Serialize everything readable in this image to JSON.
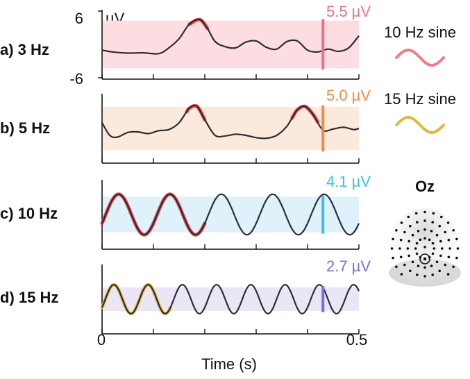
{
  "chart_data": {
    "type": "line",
    "xlabel": "Time (s)",
    "xlim": [
      0,
      0.5
    ],
    "x_ticks": [
      0,
      0.1,
      0.2,
      0.3,
      0.4,
      0.5
    ],
    "x_tick_labels": {
      "start": "0",
      "end": "0.5"
    },
    "y_range_uv": [
      -6,
      6
    ],
    "y_unit": "µV",
    "y_tick_labels": {
      "top": "6",
      "bottom": "-6"
    },
    "panels": [
      {
        "id": "a",
        "label": "a) 3 Hz",
        "stim_freq_hz": 3,
        "shade_color": "#fbdde2",
        "amplitude_label": "5.5 µV",
        "amplitude_uv": 5.5,
        "marker_color": "#ef6f86",
        "marker_time_s": 0.43,
        "fit_color": "#e8323a",
        "fit_segments": [
          [
            0.17,
            0.205
          ]
        ],
        "series": [
          [
            0.0,
            -1.0
          ],
          [
            0.02,
            -1.3
          ],
          [
            0.05,
            -1.5
          ],
          [
            0.08,
            -1.45
          ],
          [
            0.11,
            -1.6
          ],
          [
            0.13,
            -0.6
          ],
          [
            0.15,
            1.0
          ],
          [
            0.17,
            3.5
          ],
          [
            0.19,
            4.3
          ],
          [
            0.205,
            2.8
          ],
          [
            0.22,
            0.5
          ],
          [
            0.24,
            -0.4
          ],
          [
            0.26,
            -0.6
          ],
          [
            0.28,
            0.4
          ],
          [
            0.3,
            0.6
          ],
          [
            0.32,
            -0.5
          ],
          [
            0.34,
            -0.8
          ],
          [
            0.36,
            0.5
          ],
          [
            0.38,
            0.6
          ],
          [
            0.4,
            -1.0
          ],
          [
            0.42,
            -1.3
          ],
          [
            0.44,
            -0.8
          ],
          [
            0.46,
            -1.2
          ],
          [
            0.48,
            -0.6
          ],
          [
            0.5,
            1.5
          ]
        ]
      },
      {
        "id": "b",
        "label": "b) 5 Hz",
        "stim_freq_hz": 5,
        "shade_color": "#fbe9dc",
        "amplitude_label": "5.0 µV",
        "amplitude_uv": 5.0,
        "marker_color": "#ee8a48",
        "marker_time_s": 0.43,
        "fit_color": "#e8323a",
        "fit_segments": [
          [
            0.165,
            0.2
          ],
          [
            0.37,
            0.42
          ]
        ],
        "series": [
          [
            0.0,
            1.0
          ],
          [
            0.015,
            -1.2
          ],
          [
            0.03,
            -1.5
          ],
          [
            0.05,
            -0.7
          ],
          [
            0.07,
            -0.6
          ],
          [
            0.09,
            -0.9
          ],
          [
            0.11,
            -0.4
          ],
          [
            0.13,
            -0.2
          ],
          [
            0.15,
            1.0
          ],
          [
            0.17,
            3.5
          ],
          [
            0.185,
            3.8
          ],
          [
            0.2,
            1.5
          ],
          [
            0.22,
            -1.2
          ],
          [
            0.24,
            -1.3
          ],
          [
            0.26,
            -1.0
          ],
          [
            0.28,
            -1.2
          ],
          [
            0.3,
            -1.6
          ],
          [
            0.32,
            -1.7
          ],
          [
            0.34,
            -1.2
          ],
          [
            0.36,
            0.4
          ],
          [
            0.38,
            3.2
          ],
          [
            0.395,
            3.8
          ],
          [
            0.41,
            2.5
          ],
          [
            0.43,
            -0.3
          ],
          [
            0.45,
            -0.1
          ],
          [
            0.47,
            0.2
          ],
          [
            0.49,
            -0.2
          ],
          [
            0.5,
            0.0
          ]
        ]
      },
      {
        "id": "c",
        "label": "c) 10 Hz",
        "stim_freq_hz": 10,
        "shade_color": "#dff1fb",
        "amplitude_label": "4.1 µV",
        "amplitude_uv": 4.1,
        "marker_color": "#3cbfe7",
        "marker_time_s": 0.43,
        "fit_color": "#e8323a",
        "fit_segments": [
          [
            0.0,
            0.2
          ]
        ],
        "sine": {
          "freq_hz": 10,
          "amp_uv": 3.5,
          "phase_rad": -0.45
        }
      },
      {
        "id": "d",
        "label": "d) 15 Hz",
        "stim_freq_hz": 15,
        "shade_color": "#ebe6f6",
        "amplitude_label": "2.7 µV",
        "amplitude_uv": 2.7,
        "marker_color": "#7b6ce3",
        "marker_time_s": 0.43,
        "fit_color": "#e2b543",
        "fit_segments": [
          [
            0.0,
            0.133
          ]
        ],
        "sine": {
          "freq_hz": 15,
          "amp_uv": 2.5,
          "phase_rad": -0.6
        }
      }
    ],
    "legend": [
      {
        "label": "10 Hz sine",
        "color": "#f47b82"
      },
      {
        "label": "15 Hz sine",
        "color": "#e2b543"
      }
    ]
  },
  "electrode": {
    "label": "Oz"
  },
  "colors": {
    "trace": "#2b2d33",
    "axis": "#111111"
  }
}
